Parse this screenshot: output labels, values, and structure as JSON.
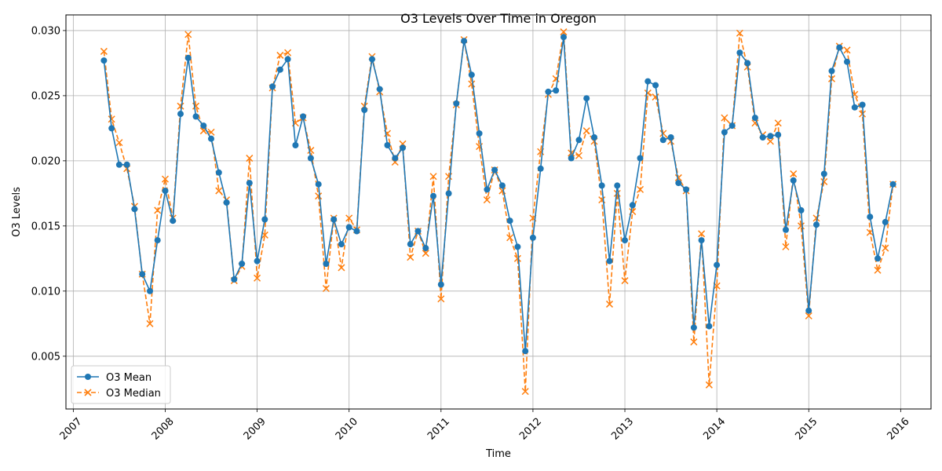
{
  "chart_data": {
    "type": "line",
    "title": "O3 Levels Over Time in Oregon",
    "xlabel": "Time",
    "ylabel": "O3 Levels",
    "xlim": [
      2006.92,
      2016.33
    ],
    "ylim": [
      0.00095,
      0.0312
    ],
    "x_ticks": [
      2007,
      2008,
      2009,
      2010,
      2011,
      2012,
      2013,
      2014,
      2015,
      2016
    ],
    "x_tick_labels": [
      "2007",
      "2008",
      "2009",
      "2010",
      "2011",
      "2012",
      "2013",
      "2014",
      "2015",
      "2016"
    ],
    "y_ticks": [
      0.005,
      0.01,
      0.015,
      0.02,
      0.025,
      0.03
    ],
    "y_tick_labels": [
      "0.005",
      "0.010",
      "0.015",
      "0.020",
      "0.025",
      "0.030"
    ],
    "grid": true,
    "legend_position": "lower-left",
    "colors": {
      "mean": "#1f77b4",
      "median": "#ff7f0e",
      "grid": "#b0b0b0",
      "axis": "#000000"
    },
    "start": {
      "year": 2007,
      "month": 5
    },
    "series": [
      {
        "name": "O3 Mean",
        "style": "solid-circle",
        "values": [
          0.0277,
          0.0225,
          0.0197,
          0.0197,
          0.0163,
          0.0113,
          0.01,
          0.0139,
          0.0177,
          0.0154,
          0.0236,
          0.0279,
          0.0234,
          0.0227,
          0.0217,
          0.0191,
          0.0168,
          0.0109,
          0.0121,
          0.0183,
          0.0123,
          0.0155,
          0.0257,
          0.027,
          0.0278,
          0.0212,
          0.0234,
          0.0202,
          0.0182,
          0.0121,
          0.0155,
          0.0136,
          0.0149,
          0.0146,
          0.0239,
          0.0278,
          0.0255,
          0.0212,
          0.0202,
          0.021,
          0.0136,
          0.0146,
          0.0133,
          0.0173,
          0.0105,
          0.0175,
          0.0244,
          0.0292,
          0.0266,
          0.0221,
          0.0178,
          0.0193,
          0.0181,
          0.0154,
          0.0134,
          0.0054,
          0.0141,
          0.0194,
          0.0253,
          0.0254,
          0.0295,
          0.0202,
          0.0216,
          0.0248,
          0.0218,
          0.0181,
          0.0123,
          0.0181,
          0.0139,
          0.0166,
          0.0202,
          0.0261,
          0.0258,
          0.0216,
          0.0218,
          0.0183,
          0.0178,
          0.0072,
          0.0139,
          0.0073,
          0.012,
          0.0222,
          0.0227,
          0.0283,
          0.0275,
          0.0233,
          0.0218,
          0.0219,
          0.022,
          0.0147,
          0.0185,
          0.0162,
          0.0085,
          0.0151,
          0.019,
          0.0269,
          0.0287,
          0.0276,
          0.0241,
          0.0243,
          0.0157,
          0.0125,
          0.0153,
          0.0182
        ]
      },
      {
        "name": "O3 Median",
        "style": "dashed-x",
        "values": [
          0.0284,
          0.0232,
          0.0214,
          0.0194,
          0.0165,
          0.0113,
          0.0075,
          0.0162,
          0.0186,
          0.0156,
          0.0242,
          0.0297,
          0.0242,
          0.0223,
          0.0222,
          0.0177,
          0.017,
          0.0108,
          0.0119,
          0.0202,
          0.011,
          0.0143,
          0.0256,
          0.0281,
          0.0283,
          0.0229,
          0.0233,
          0.0208,
          0.0173,
          0.0102,
          0.0156,
          0.0118,
          0.0156,
          0.0147,
          0.0242,
          0.028,
          0.0253,
          0.0221,
          0.0199,
          0.0213,
          0.0126,
          0.0146,
          0.0129,
          0.0188,
          0.0094,
          0.0188,
          0.0243,
          0.0293,
          0.0259,
          0.0211,
          0.017,
          0.0193,
          0.0177,
          0.0141,
          0.0125,
          0.0023,
          0.0156,
          0.0207,
          0.0251,
          0.0263,
          0.0299,
          0.0206,
          0.0204,
          0.0223,
          0.0215,
          0.017,
          0.009,
          0.0175,
          0.0108,
          0.0161,
          0.0178,
          0.0252,
          0.0249,
          0.0221,
          0.0215,
          0.0187,
          0.0177,
          0.0061,
          0.0144,
          0.0028,
          0.0104,
          0.0233,
          0.0227,
          0.0298,
          0.0272,
          0.0229,
          0.022,
          0.0215,
          0.0229,
          0.0134,
          0.019,
          0.015,
          0.0081,
          0.0156,
          0.0184,
          0.0263,
          0.0288,
          0.0285,
          0.0251,
          0.0236,
          0.0145,
          0.0116,
          0.0133,
          0.0182
        ]
      }
    ]
  }
}
